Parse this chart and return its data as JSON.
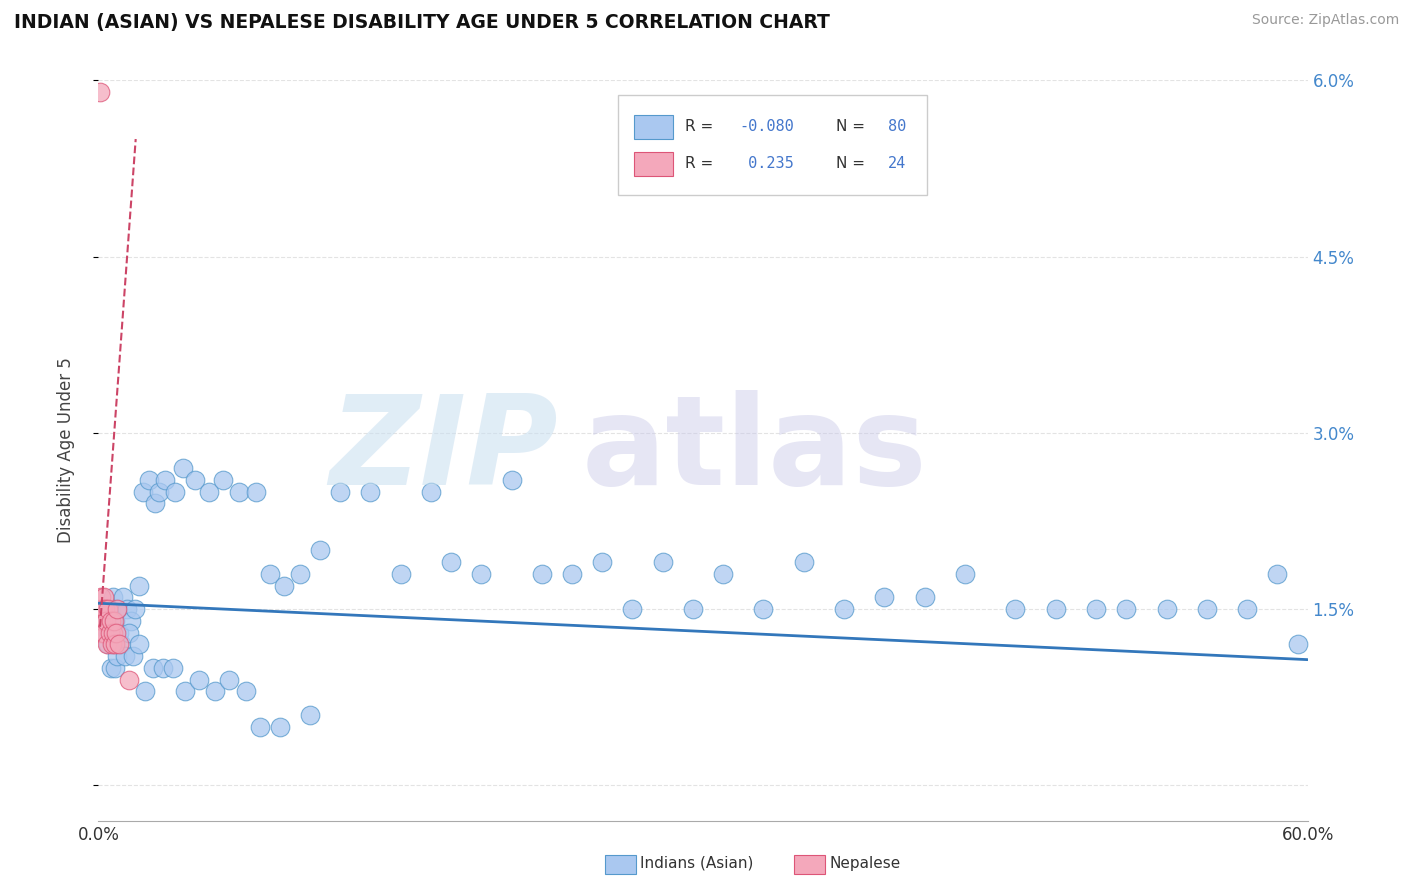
{
  "title": "INDIAN (ASIAN) VS NEPALESE DISABILITY AGE UNDER 5 CORRELATION CHART",
  "source": "Source: ZipAtlas.com",
  "ylabel": "Disability Age Under 5",
  "xmin": 0.0,
  "xmax": 60.0,
  "ymin": -0.3,
  "ymax": 6.0,
  "ytick_vals": [
    0.0,
    1.5,
    3.0,
    4.5,
    6.0
  ],
  "ytick_labels": [
    "",
    "1.5%",
    "3.0%",
    "4.5%",
    "6.0%"
  ],
  "R_indian": -0.08,
  "N_indian": 80,
  "R_nepalese": 0.235,
  "N_nepalese": 24,
  "color_indian_fill": "#aac8f0",
  "color_indian_edge": "#5599cc",
  "color_nepalese_fill": "#f4a8bb",
  "color_nepalese_edge": "#dd5577",
  "color_line_indian": "#3377bb",
  "color_line_nepalese": "#cc4466",
  "color_grid": "#dddddd",
  "indian_x": [
    0.3,
    0.4,
    0.5,
    0.6,
    0.7,
    0.8,
    0.9,
    1.0,
    1.2,
    1.4,
    1.6,
    1.8,
    2.0,
    2.2,
    2.5,
    2.8,
    3.0,
    3.3,
    3.8,
    4.2,
    4.8,
    5.5,
    6.2,
    7.0,
    7.8,
    8.5,
    9.2,
    10.0,
    11.0,
    12.0,
    13.5,
    15.0,
    16.5,
    17.5,
    19.0,
    20.5,
    22.0,
    23.5,
    25.0,
    26.5,
    28.0,
    29.5,
    31.0,
    33.0,
    35.0,
    37.0,
    39.0,
    41.0,
    43.0,
    45.5,
    47.5,
    49.5,
    51.0,
    53.0,
    55.0,
    57.0,
    58.5,
    59.5,
    0.5,
    0.6,
    0.7,
    0.8,
    0.9,
    1.1,
    1.3,
    1.5,
    1.7,
    2.0,
    2.3,
    2.7,
    3.2,
    3.7,
    4.3,
    5.0,
    5.8,
    6.5,
    7.3,
    8.0,
    9.0,
    10.5
  ],
  "indian_y": [
    1.5,
    1.4,
    1.3,
    1.5,
    1.6,
    1.4,
    1.5,
    1.3,
    1.6,
    1.5,
    1.4,
    1.5,
    1.7,
    2.5,
    2.6,
    2.4,
    2.5,
    2.6,
    2.5,
    2.7,
    2.6,
    2.5,
    2.6,
    2.5,
    2.5,
    1.8,
    1.7,
    1.8,
    2.0,
    2.5,
    2.5,
    1.8,
    2.5,
    1.9,
    1.8,
    2.6,
    1.8,
    1.8,
    1.9,
    1.5,
    1.9,
    1.5,
    1.8,
    1.5,
    1.9,
    1.5,
    1.6,
    1.6,
    1.8,
    1.5,
    1.5,
    1.5,
    1.5,
    1.5,
    1.5,
    1.5,
    1.8,
    1.2,
    1.2,
    1.0,
    1.2,
    1.0,
    1.1,
    1.2,
    1.1,
    1.3,
    1.1,
    1.2,
    0.8,
    1.0,
    1.0,
    1.0,
    0.8,
    0.9,
    0.8,
    0.9,
    0.8,
    0.5,
    0.5,
    0.6
  ],
  "nepalese_x": [
    0.08,
    0.1,
    0.12,
    0.15,
    0.18,
    0.2,
    0.22,
    0.25,
    0.28,
    0.3,
    0.35,
    0.4,
    0.45,
    0.5,
    0.55,
    0.6,
    0.65,
    0.7,
    0.75,
    0.8,
    0.85,
    0.9,
    1.0,
    1.5
  ],
  "nepalese_y": [
    5.9,
    1.5,
    1.4,
    1.6,
    1.3,
    1.5,
    1.4,
    1.5,
    1.3,
    1.6,
    1.5,
    1.4,
    1.2,
    1.5,
    1.3,
    1.4,
    1.2,
    1.3,
    1.4,
    1.2,
    1.3,
    1.5,
    1.2,
    0.9
  ],
  "indian_trend_x": [
    0.0,
    60.0
  ],
  "indian_trend_y": [
    1.55,
    1.07
  ],
  "nep_trend_x0": 0.08,
  "nep_trend_x1": 1.85,
  "nep_trend_y0": 1.35,
  "nep_trend_y1": 5.5
}
